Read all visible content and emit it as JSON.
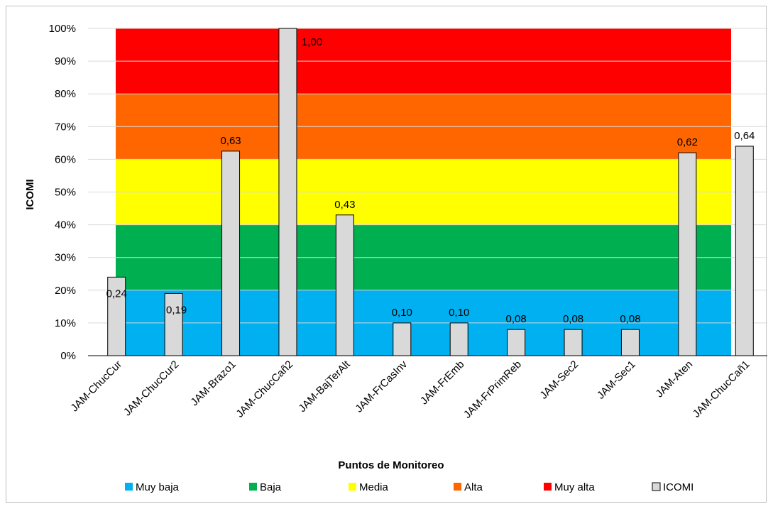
{
  "chart_data": {
    "type": "bar",
    "xlabel": "Puntos de Monitoreo",
    "ylabel": "ICOMI",
    "ylim": [
      0,
      1
    ],
    "yticks": [
      "0%",
      "10%",
      "20%",
      "30%",
      "40%",
      "50%",
      "60%",
      "70%",
      "80%",
      "90%",
      "100%"
    ],
    "categories": [
      "JAM-ChucCur",
      "JAM-ChucCur2",
      "JAM-Brazo1",
      "JAM-ChucCañ2",
      "JAM-BajTerAlt",
      "JAM-FrCasInv",
      "JAM-FrEmb",
      "JAM-FrPrimReb",
      "JAM-Sec2",
      "JAM-Sec1",
      "JAM-Aten",
      "JAM-ChucCañ1"
    ],
    "series": [
      {
        "name": "ICOMI",
        "color": "#d9d9d9",
        "values": [
          0.24,
          0.19,
          0.625,
          1.0,
          0.43,
          0.1,
          0.1,
          0.08,
          0.08,
          0.08,
          0.62,
          0.64
        ],
        "labels": [
          "0,24",
          "0,19",
          "0,63",
          "1,00",
          "0,43",
          "0,10",
          "0,10",
          "0,08",
          "0,08",
          "0,08",
          "0,62",
          "0,64"
        ]
      }
    ],
    "bands": [
      {
        "name": "Muy baja",
        "from": 0.0,
        "to": 0.2,
        "color": "#00b0f0"
      },
      {
        "name": "Baja",
        "from": 0.2,
        "to": 0.4,
        "color": "#00b050"
      },
      {
        "name": "Media",
        "from": 0.4,
        "to": 0.6,
        "color": "#ffff00"
      },
      {
        "name": "Alta",
        "from": 0.6,
        "to": 0.8,
        "color": "#ff6600"
      },
      {
        "name": "Muy alta",
        "from": 0.8,
        "to": 1.0,
        "color": "#ff0000"
      }
    ],
    "grid": true,
    "legend_position": "bottom"
  }
}
